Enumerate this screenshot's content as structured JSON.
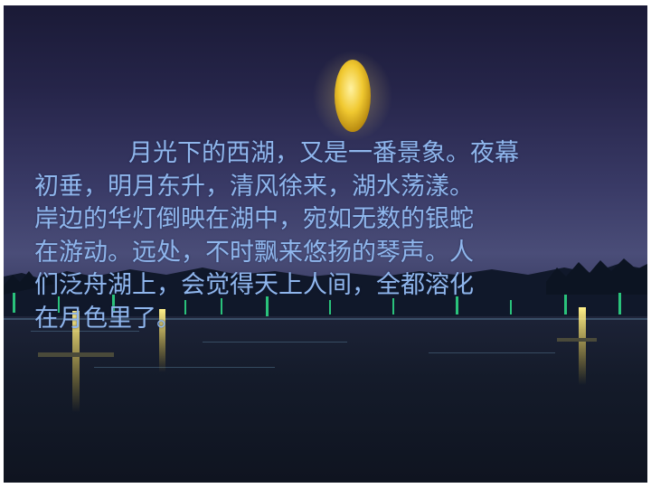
{
  "slide": {
    "background": "night view of West Lake with full moon over the water",
    "colors": {
      "sky_top": "#1a1a36",
      "sky_horizon": "#4a4d78",
      "water": "#141b2a",
      "moon": "#f0c830",
      "text": "#8fb6ec",
      "lights_green": "#2fe08a",
      "lights_yellow": "#f4e060"
    }
  },
  "poem": {
    "lines": [
      "月光下的西湖，又是一番景象。夜幕",
      "初垂，明月东升，清风徐来，湖水荡漾。",
      "岸边的华灯倒映在湖中，宛如无数的银蛇",
      "在游动。远处，不时飘来悠扬的琴声。人",
      "们泛舟湖上，会觉得天上人间，全都溶化",
      "在月色里了。"
    ]
  }
}
